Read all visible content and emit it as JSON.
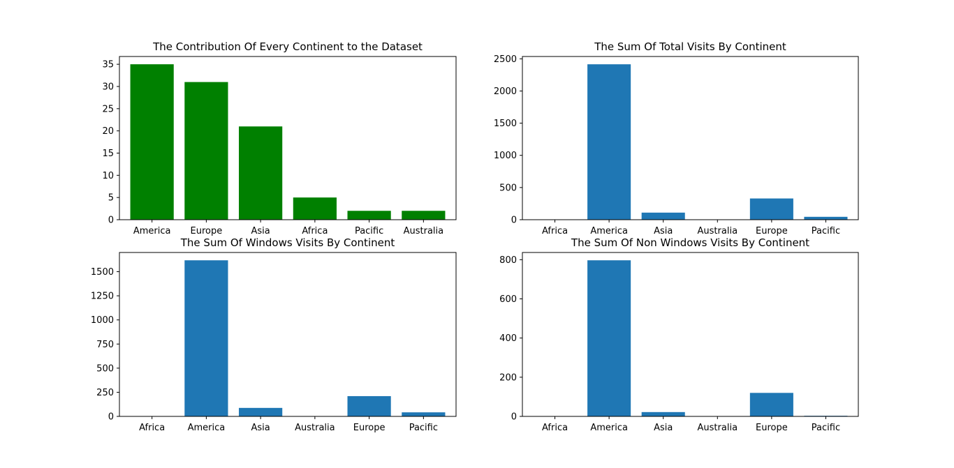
{
  "chart_data": [
    {
      "type": "bar",
      "title": "The Contribution Of Every Continent to the Dataset",
      "categories": [
        "America",
        "Europe",
        "Asia",
        "Africa",
        "Pacific",
        "Australia"
      ],
      "values": [
        35,
        31,
        21,
        5,
        2,
        2
      ],
      "ylim": [
        0,
        36.75
      ],
      "yticks": [
        0,
        5,
        10,
        15,
        20,
        25,
        30,
        35
      ],
      "color": "#008000",
      "xlabel": "",
      "ylabel": "",
      "grid": false
    },
    {
      "type": "bar",
      "title": "The Sum Of Total Visits By Continent",
      "categories": [
        "Africa",
        "America",
        "Asia",
        "Australia",
        "Europe",
        "Pacific"
      ],
      "values": [
        3,
        2415,
        110,
        2,
        330,
        45
      ],
      "ylim": [
        0,
        2536
      ],
      "yticks": [
        0,
        500,
        1000,
        1500,
        2000,
        2500
      ],
      "color": "#1f77b4",
      "xlabel": "",
      "ylabel": "",
      "grid": false
    },
    {
      "type": "bar",
      "title": "The Sum Of Windows Visits By Continent",
      "categories": [
        "Africa",
        "America",
        "Asia",
        "Australia",
        "Europe",
        "Pacific"
      ],
      "values": [
        3,
        1618,
        88,
        1,
        210,
        42
      ],
      "ylim": [
        0,
        1699
      ],
      "yticks": [
        0,
        250,
        500,
        750,
        1000,
        1250,
        1500
      ],
      "color": "#1f77b4",
      "xlabel": "",
      "ylabel": "",
      "grid": false
    },
    {
      "type": "bar",
      "title": "The Sum Of Non Windows Visits By Continent",
      "categories": [
        "Africa",
        "America",
        "Asia",
        "Australia",
        "Europe",
        "Pacific"
      ],
      "values": [
        0,
        797,
        22,
        1,
        120,
        3
      ],
      "ylim": [
        0,
        836.85
      ],
      "yticks": [
        0,
        200,
        400,
        600,
        800
      ],
      "color": "#1f77b4",
      "xlabel": "",
      "ylabel": "",
      "grid": false
    }
  ]
}
